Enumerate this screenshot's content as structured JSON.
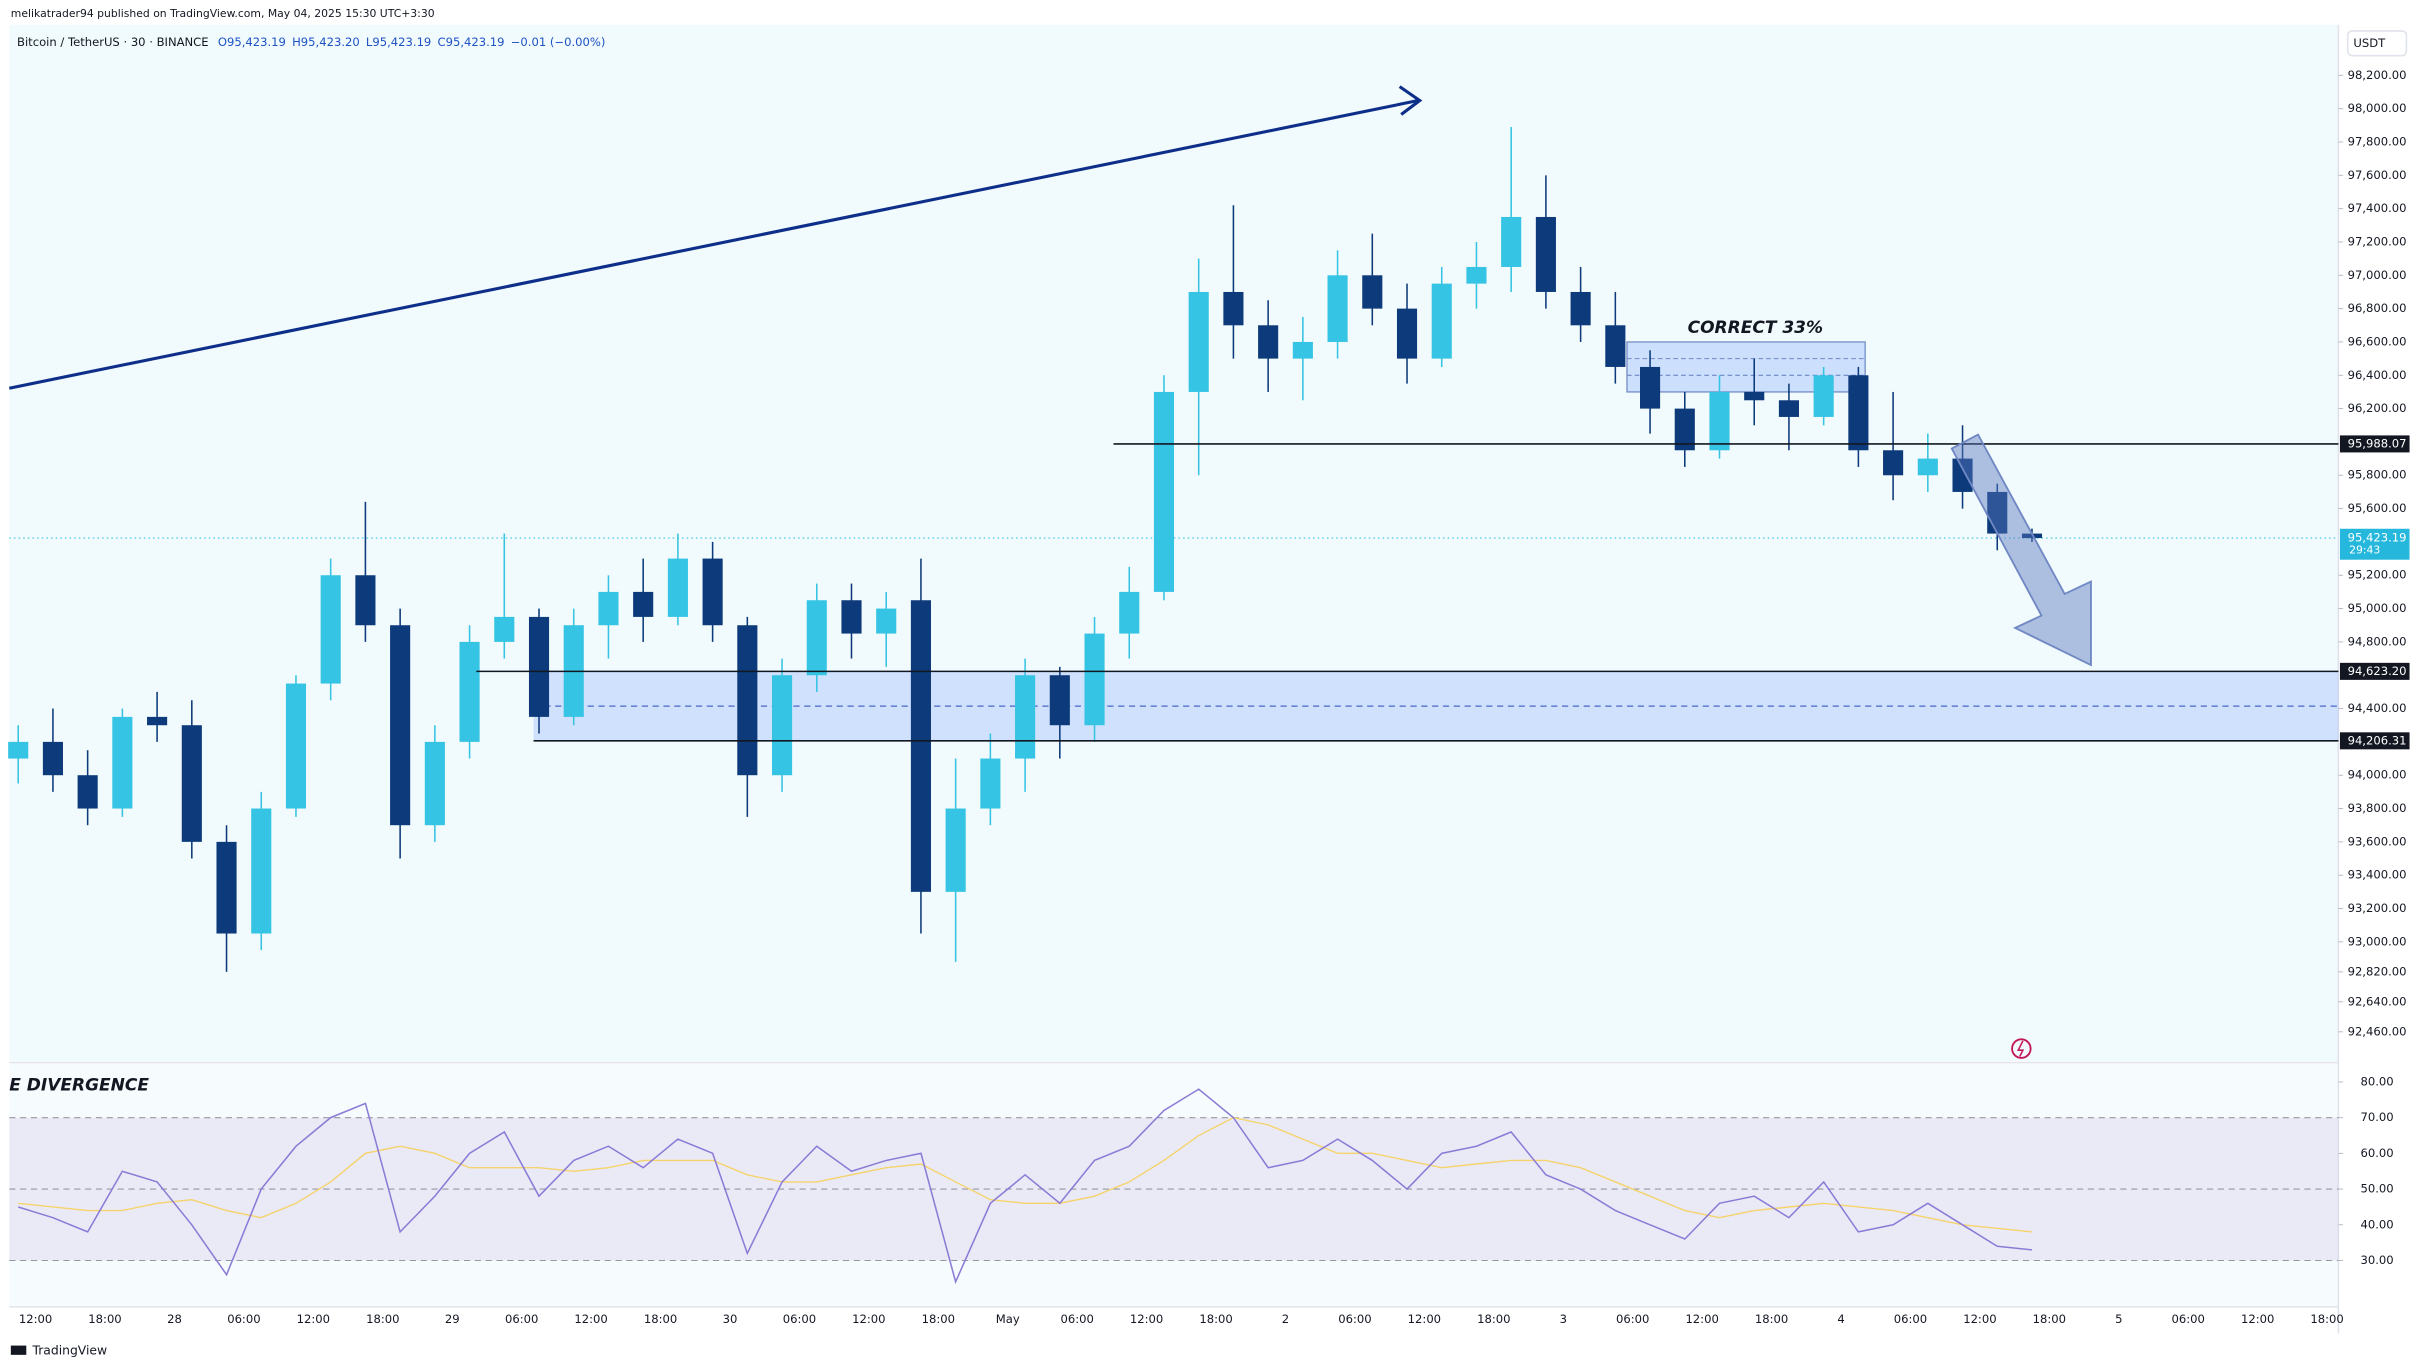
{
  "header": {
    "publisher": "melikatrader94 published on TradingView.com, May 04, 2025 15:30 UTC+3:30",
    "symbol": "Bitcoin / TetherUS · 30 · BINANCE",
    "ohlc": [
      "O95,423.19",
      "H95,423.20",
      "L95,423.19",
      "C95,423.19"
    ],
    "change": "−0.01 (−0.00%)"
  },
  "chart_data": [
    {
      "type": "candlestick",
      "currency": "USDT",
      "ylim": [
        92285,
        98485
      ],
      "yticks": [
        {
          "value": 98200,
          "label": "98,200.00"
        },
        {
          "value": 98000,
          "label": "98,000.00"
        },
        {
          "value": 97800,
          "label": "97,800.00"
        },
        {
          "value": 97600,
          "label": "97,600.00"
        },
        {
          "value": 97400,
          "label": "97,400.00"
        },
        {
          "value": 97200,
          "label": "97,200.00"
        },
        {
          "value": 97000,
          "label": "97,000.00"
        },
        {
          "value": 96800,
          "label": "96,800.00"
        },
        {
          "value": 96600,
          "label": "96,600.00"
        },
        {
          "value": 96400,
          "label": "96,400.00"
        },
        {
          "value": 96200,
          "label": "96,200.00"
        },
        {
          "value": 95800,
          "label": "95,800.00"
        },
        {
          "value": 95600,
          "label": "95,600.00"
        },
        {
          "value": 95200,
          "label": "95,200.00"
        },
        {
          "value": 95000,
          "label": "95,000.00"
        },
        {
          "value": 94800,
          "label": "94,800.00"
        },
        {
          "value": 94400,
          "label": "94,400.00"
        },
        {
          "value": 94000,
          "label": "94,000.00"
        },
        {
          "value": 93800,
          "label": "93,800.00"
        },
        {
          "value": 93600,
          "label": "93,600.00"
        },
        {
          "value": 93400,
          "label": "93,400.00"
        },
        {
          "value": 93200,
          "label": "93,200.00"
        },
        {
          "value": 93000,
          "label": "93,000.00"
        },
        {
          "value": 92820,
          "label": "92,820.00"
        },
        {
          "value": 92640,
          "label": "92,640.00"
        },
        {
          "value": 92460,
          "label": "92,460.00"
        }
      ],
      "x_labels": [
        "12:00",
        "18:00",
        "28",
        "06:00",
        "12:00",
        "18:00",
        "29",
        "06:00",
        "12:00",
        "18:00",
        "30",
        "06:00",
        "12:00",
        "18:00",
        "May",
        "06:00",
        "12:00",
        "18:00",
        "2",
        "06:00",
        "12:00",
        "18:00",
        "3",
        "06:00",
        "12:00",
        "18:00",
        "4",
        "06:00",
        "12:00",
        "18:00",
        "5",
        "06:00",
        "12:00",
        "18:00"
      ],
      "up_color": "#35c4e4",
      "down_color": "#0c3a7a",
      "open": [
        94100,
        94200,
        94000,
        93800,
        94350,
        94300,
        93600,
        93050,
        93800,
        94550,
        95200,
        94900,
        93700,
        94200,
        94800,
        94950,
        94350,
        94900,
        95100,
        94950,
        95300,
        94900,
        94000,
        94600,
        95050,
        94850,
        95050,
        93300,
        93800,
        94100,
        94600,
        94300,
        94850,
        95100,
        96300,
        96900,
        96700,
        96500,
        96600,
        97000,
        96800,
        96500,
        96950,
        97050,
        97350,
        96900,
        96700,
        96450,
        96200,
        95950,
        96300,
        96250,
        96150,
        96400,
        95950,
        95800,
        95900,
        95700,
        95450
      ],
      "high": [
        94300,
        94400,
        94150,
        94400,
        94500,
        94450,
        93700,
        93900,
        94600,
        95300,
        95640,
        95000,
        94300,
        94900,
        95450,
        95000,
        95000,
        95200,
        95300,
        95450,
        95400,
        94950,
        94700,
        95150,
        95150,
        95100,
        95300,
        94100,
        94250,
        94700,
        94650,
        94950,
        95250,
        96400,
        97100,
        97420,
        96850,
        96750,
        97150,
        97250,
        96950,
        97050,
        97200,
        97890,
        97600,
        97050,
        96900,
        96550,
        96300,
        96400,
        96500,
        96350,
        96450,
        96450,
        96300,
        96050,
        96100,
        95750,
        95480
      ],
      "low": [
        93950,
        93900,
        93700,
        93750,
        94200,
        93500,
        92820,
        92950,
        93750,
        94450,
        94800,
        93500,
        93600,
        94100,
        94700,
        94250,
        94300,
        94700,
        94800,
        94900,
        94800,
        93750,
        93900,
        94500,
        94700,
        94650,
        93050,
        92880,
        93700,
        93900,
        94100,
        94200,
        94700,
        95050,
        95800,
        96500,
        96300,
        96250,
        96500,
        96700,
        96350,
        96450,
        96800,
        96900,
        96800,
        96600,
        96350,
        96050,
        95850,
        95900,
        96100,
        95950,
        96100,
        95850,
        95650,
        95700,
        95600,
        95350,
        95400
      ],
      "close": [
        94200,
        94000,
        93800,
        94350,
        94300,
        93600,
        93050,
        93800,
        94550,
        95200,
        94900,
        93700,
        94200,
        94800,
        94950,
        94350,
        94900,
        95100,
        94950,
        95300,
        94900,
        94000,
        94600,
        95050,
        94850,
        95000,
        93300,
        93800,
        94100,
        94600,
        94300,
        94850,
        95100,
        96300,
        96900,
        96700,
        96500,
        96600,
        97000,
        96800,
        96500,
        96950,
        97050,
        97350,
        96900,
        96700,
        96450,
        96200,
        95950,
        96300,
        96250,
        96150,
        96400,
        95950,
        95800,
        95900,
        95700,
        95450,
        95423.19
      ],
      "levels": [
        {
          "value": 95988.07,
          "label": "95,988.07"
        },
        {
          "value": 94623.2,
          "label": "94,623.20"
        },
        {
          "value": 94206.31,
          "label": "94,206.31"
        }
      ],
      "current": {
        "value": 95423.19,
        "label": "95,423.19",
        "countdown": "29:43"
      },
      "correct_box": {
        "top": 96600,
        "bottom": 96300,
        "label": "CORRECT 33%"
      }
    },
    {
      "type": "line",
      "title": "E DIVERGENCE",
      "ylim": [
        17,
        85
      ],
      "yticks": [
        {
          "value": 80,
          "label": "80.00"
        },
        {
          "value": 70,
          "label": "70.00"
        },
        {
          "value": 60,
          "label": "60.00"
        },
        {
          "value": 50,
          "label": "50.00"
        },
        {
          "value": 40,
          "label": "40.00"
        },
        {
          "value": 30,
          "label": "30.00"
        }
      ],
      "bands": [
        70,
        50,
        30
      ],
      "series": [
        {
          "color": "#8c7bd6",
          "values": [
            45,
            42,
            38,
            55,
            52,
            40,
            26,
            50,
            62,
            70,
            74,
            38,
            48,
            60,
            66,
            48,
            58,
            62,
            56,
            64,
            60,
            32,
            52,
            62,
            55,
            58,
            60,
            24,
            46,
            54,
            46,
            58,
            62,
            72,
            78,
            70,
            56,
            58,
            64,
            58,
            50,
            60,
            62,
            66,
            54,
            50,
            44,
            40,
            36,
            46,
            48,
            42,
            52,
            38,
            40,
            46,
            40,
            34,
            33
          ]
        },
        {
          "color": "#f5d36b",
          "values": [
            46,
            45,
            44,
            44,
            46,
            47,
            44,
            42,
            46,
            52,
            60,
            62,
            60,
            56,
            56,
            56,
            55,
            56,
            58,
            58,
            58,
            54,
            52,
            52,
            54,
            56,
            57,
            52,
            47,
            46,
            46,
            48,
            52,
            58,
            65,
            70,
            68,
            64,
            60,
            60,
            58,
            56,
            57,
            58,
            58,
            56,
            52,
            48,
            44,
            42,
            44,
            45,
            46,
            45,
            44,
            42,
            40,
            39,
            38
          ]
        }
      ]
    }
  ],
  "footer": "TradingView"
}
